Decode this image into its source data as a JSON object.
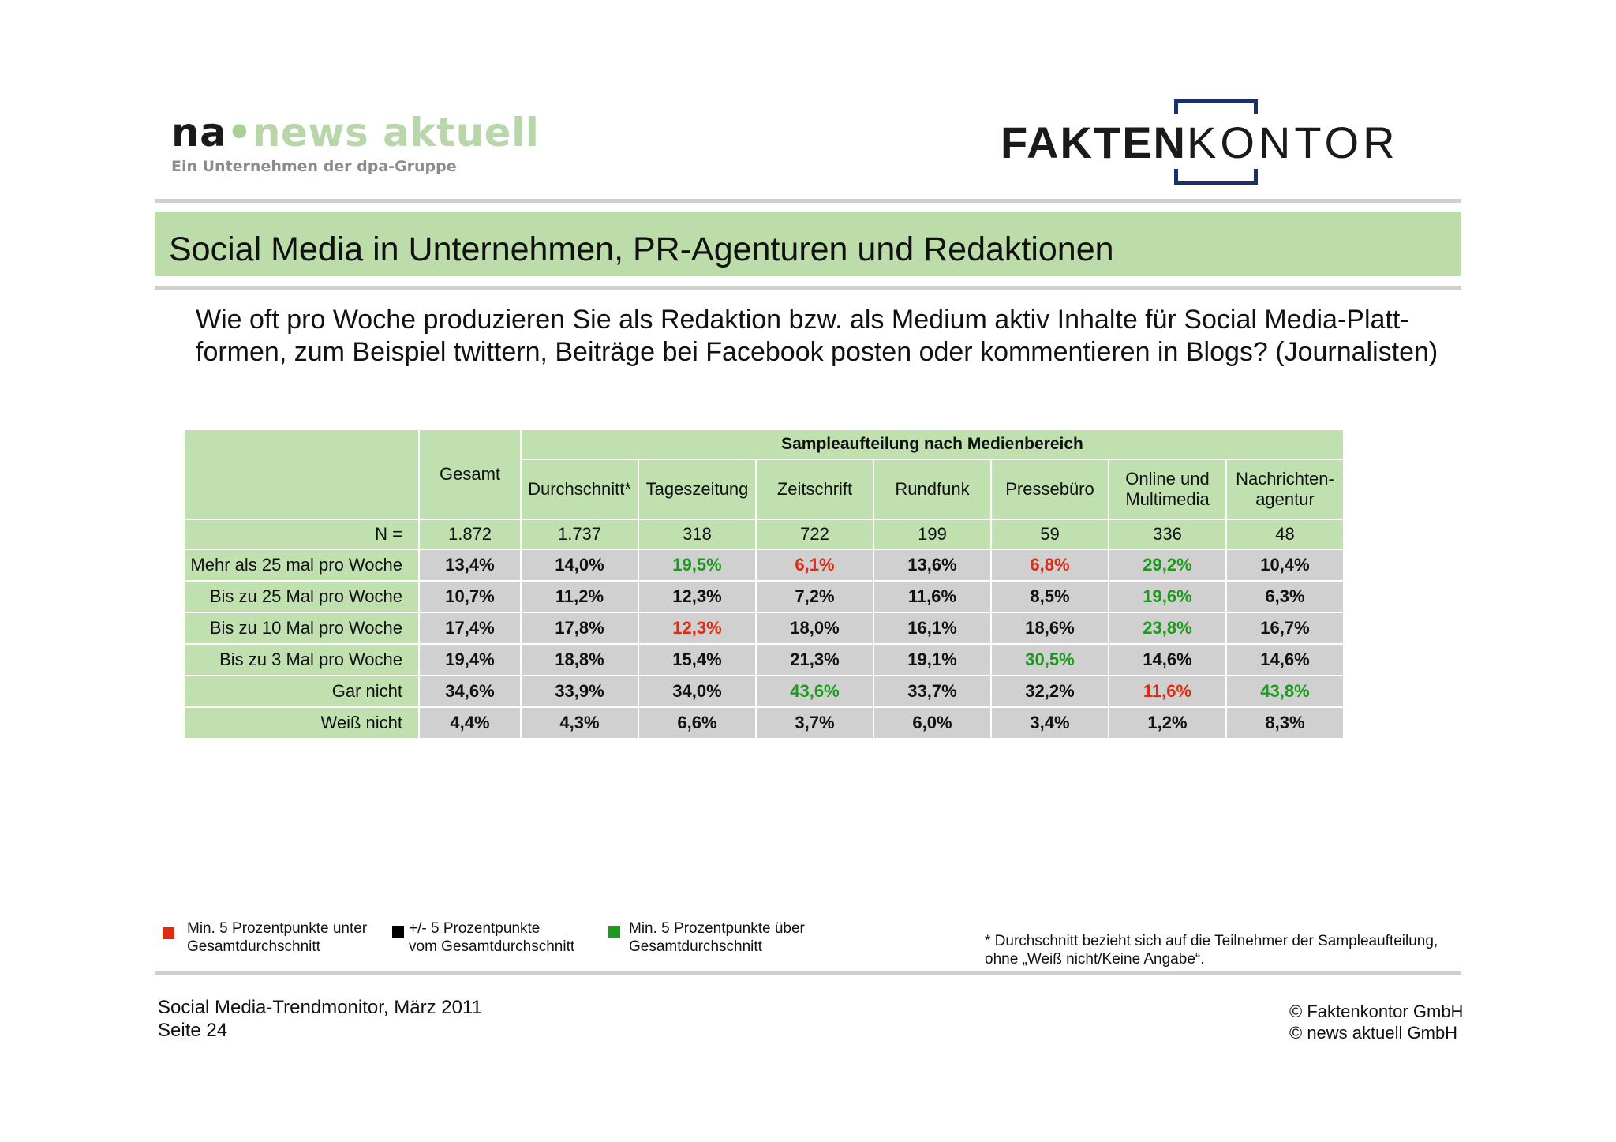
{
  "logos": {
    "left_na": "na",
    "left_name": "news aktuell",
    "left_subtitle": "Ein Unternehmen der dpa-Gruppe",
    "right_bold": "FAKTEN",
    "right_light": "KONTOR"
  },
  "title": "Social Media in Unternehmen, PR-Agenturen und Redaktionen",
  "question": {
    "line1": "Wie oft pro Woche produzieren Sie als Redaktion bzw. als Medium aktiv Inhalte für Social Media-Platt-",
    "line2": "formen, zum Beispiel twittern, Beiträge bei Facebook posten oder kommentieren in Blogs? (Journalisten)"
  },
  "table": {
    "group_header": "Sampleaufteilung nach Medienbereich",
    "columns": [
      "Gesamt",
      "Durchschnitt*",
      "Tageszeitung",
      "Zeitschrift",
      "Rundfunk",
      "Pressebüro",
      "Online und Multimedia",
      "Nachrichten-agentur"
    ],
    "columns_display": [
      [
        "Gesamt"
      ],
      [
        "Durchschnitt*"
      ],
      [
        "Tageszeitung"
      ],
      [
        "Zeitschrift"
      ],
      [
        "Rundfunk"
      ],
      [
        "Pressebüro"
      ],
      [
        "Online und",
        "Multimedia"
      ],
      [
        "Nachrichten-",
        "agentur"
      ]
    ],
    "n_label": "N =",
    "n_values": [
      "1.872",
      "1.737",
      "318",
      "722",
      "199",
      "59",
      "336",
      "48"
    ],
    "rows": [
      {
        "label": "Mehr als 25 mal pro Woche",
        "values": [
          "13,4%",
          "14,0%",
          "19,5%",
          "6,1%",
          "13,6%",
          "6,8%",
          "29,2%",
          "10,4%"
        ],
        "colors": [
          "black",
          "black",
          "green",
          "red",
          "black",
          "red",
          "green",
          "black"
        ]
      },
      {
        "label": "Bis zu 25 Mal pro Woche",
        "values": [
          "10,7%",
          "11,2%",
          "12,3%",
          "7,2%",
          "11,6%",
          "8,5%",
          "19,6%",
          "6,3%"
        ],
        "colors": [
          "black",
          "black",
          "black",
          "black",
          "black",
          "black",
          "green",
          "black"
        ]
      },
      {
        "label": "Bis zu 10 Mal pro Woche",
        "values": [
          "17,4%",
          "17,8%",
          "12,3%",
          "18,0%",
          "16,1%",
          "18,6%",
          "23,8%",
          "16,7%"
        ],
        "colors": [
          "black",
          "black",
          "red",
          "black",
          "black",
          "black",
          "green",
          "black"
        ]
      },
      {
        "label": "Bis zu 3 Mal pro Woche",
        "values": [
          "19,4%",
          "18,8%",
          "15,4%",
          "21,3%",
          "19,1%",
          "30,5%",
          "14,6%",
          "14,6%"
        ],
        "colors": [
          "black",
          "black",
          "black",
          "black",
          "black",
          "green",
          "black",
          "black"
        ]
      },
      {
        "label": "Gar nicht",
        "values": [
          "34,6%",
          "33,9%",
          "34,0%",
          "43,6%",
          "33,7%",
          "32,2%",
          "11,6%",
          "43,8%"
        ],
        "colors": [
          "black",
          "black",
          "black",
          "green",
          "black",
          "black",
          "red",
          "green"
        ]
      },
      {
        "label": "Weiß nicht",
        "values": [
          "4,4%",
          "4,3%",
          "6,6%",
          "3,7%",
          "6,0%",
          "3,4%",
          "1,2%",
          "8,3%"
        ],
        "colors": [
          "black",
          "black",
          "black",
          "black",
          "black",
          "black",
          "black",
          "black"
        ]
      }
    ]
  },
  "legend": {
    "red": {
      "line1": "Min. 5 Prozentpunkte unter",
      "line2": "Gesamtdurchschnitt",
      "color": "#e02a14"
    },
    "black": {
      "line1": "+/- 5 Prozentpunkte",
      "line2": "vom Gesamtdurchschnitt",
      "color": "#000000"
    },
    "green": {
      "line1": "Min. 5 Prozentpunkte über",
      "line2": "Gesamtdurchschnitt",
      "color": "#1c9a1c"
    }
  },
  "footnote": {
    "line1": "* Durchschnitt bezieht sich auf die Teilnehmer der Sampleaufteilung,",
    "line2": "ohne „Weiß nicht/Keine Angabe“."
  },
  "footer": {
    "left_line1": "Social Media-Trendmonitor, März 2011",
    "left_line2": "Seite 24",
    "right_line1": "© Faktenkontor GmbH",
    "right_line2": "© news aktuell GmbH"
  },
  "colors": {
    "accent_green": "#bcdcaa",
    "table_green": "#c0e0b0",
    "table_grey": "#d0d0d0",
    "fk_navy": "#1b2f6a"
  }
}
